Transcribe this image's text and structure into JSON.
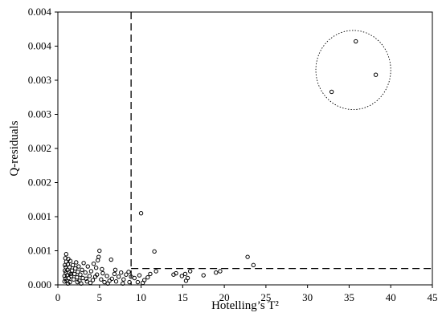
{
  "chart_data": {
    "type": "scatter",
    "xlabel": "Hotelling’s T²",
    "ylabel": "Q-residuals",
    "xlim": [
      0,
      45
    ],
    "ylim": [
      0,
      0.004
    ],
    "x_ticks": [
      0,
      5,
      10,
      15,
      20,
      25,
      30,
      35,
      40,
      45
    ],
    "y_ticks": [
      0,
      0.0005,
      0.001,
      0.0015,
      0.002,
      0.0025,
      0.003,
      0.0035,
      0.004
    ],
    "y_tick_labels": [
      "0.000",
      "0.001",
      "0.001",
      "0.002",
      "0.002",
      "0.003",
      "0.003",
      "0.004",
      "0.004"
    ],
    "grid": false,
    "legend": "none",
    "thresholds": {
      "t2_limit": 8.8,
      "q_limit": 0.00024
    },
    "outlier_circle": {
      "cx": 35.5,
      "cy": 0.00315,
      "rx": 4.5,
      "ry": 0.00058
    },
    "series": [
      {
        "points": [
          [
            35.8,
            0.00357
          ],
          [
            38.2,
            0.00308
          ],
          [
            32.9,
            0.00283
          ],
          [
            10.0,
            0.00105
          ],
          [
            22.8,
            0.00041
          ],
          [
            23.5,
            0.00029
          ],
          [
            11.6,
            0.00049
          ],
          [
            19.5,
            0.0002
          ],
          [
            19.0,
            0.00018
          ],
          [
            17.5,
            0.00014
          ],
          [
            15.9,
            0.0002
          ],
          [
            15.3,
            0.00016
          ],
          [
            14.9,
            0.00013
          ],
          [
            15.6,
            0.0001
          ],
          [
            15.4,
            6e-05
          ],
          [
            14.2,
            0.00017
          ],
          [
            13.9,
            0.00015
          ],
          [
            11.8,
            0.0002
          ],
          [
            11.1,
            0.00016
          ],
          [
            10.8,
            0.00011
          ],
          [
            10.4,
            7e-05
          ],
          [
            10.2,
            3e-05
          ],
          [
            9.6,
            4e-05
          ],
          [
            9.2,
            0.0001
          ],
          [
            9.8,
            0.00014
          ],
          [
            8.8,
            0.00012
          ],
          [
            8.5,
            0.00019
          ],
          [
            8.2,
            0.00015
          ],
          [
            7.9,
            8e-05
          ],
          [
            7.6,
            0.00018
          ],
          [
            7.3,
            0.00012
          ],
          [
            7.0,
            5e-05
          ],
          [
            6.8,
            0.00016
          ],
          [
            6.5,
            9e-05
          ],
          [
            6.4,
            0.00037
          ],
          [
            6.2,
            6e-05
          ],
          [
            5.9,
            0.00013
          ],
          [
            5.6,
            4e-05
          ],
          [
            5.4,
            0.00017
          ],
          [
            5.2,
            8e-05
          ],
          [
            5.0,
            0.0005
          ],
          [
            4.9,
            0.00041
          ],
          [
            4.8,
            0.00036
          ],
          [
            4.6,
            0.00025
          ],
          [
            4.5,
            0.00012
          ],
          [
            4.3,
            0.00031
          ],
          [
            4.2,
            7e-05
          ],
          [
            4.0,
            0.0002
          ],
          [
            3.8,
            0.00013
          ],
          [
            3.6,
            0.00027
          ],
          [
            3.5,
            5e-05
          ],
          [
            3.3,
            0.00018
          ],
          [
            3.1,
            0.00032
          ],
          [
            3.0,
            0.0001
          ],
          [
            2.9,
            0.00022
          ],
          [
            2.7,
            0.00015
          ],
          [
            2.6,
            6e-05
          ],
          [
            2.5,
            0.00027
          ],
          [
            2.4,
            0.00019
          ],
          [
            2.3,
            0.00011
          ],
          [
            2.2,
            0.00033
          ],
          [
            2.1,
            0.00024
          ],
          [
            2.0,
            0.00016
          ],
          [
            1.9,
            8e-05
          ],
          [
            1.8,
            0.00029
          ],
          [
            1.7,
            0.00021
          ],
          [
            1.6,
            0.00013
          ],
          [
            1.5,
            0.00035
          ],
          [
            1.45,
            4e-05
          ],
          [
            1.4,
            0.00026
          ],
          [
            1.35,
            0.00018
          ],
          [
            1.3,
            0.0001
          ],
          [
            1.25,
            0.00038
          ],
          [
            1.2,
            0.0003
          ],
          [
            1.15,
            0.00022
          ],
          [
            1.1,
            0.00014
          ],
          [
            1.05,
            6e-05
          ],
          [
            1.0,
            0.00045
          ],
          [
            1.0,
            0.00034
          ],
          [
            0.95,
            0.00026
          ],
          [
            0.95,
            0.00018
          ],
          [
            0.9,
            9e-05
          ],
          [
            0.9,
            0.00039
          ],
          [
            0.85,
            0.00029
          ],
          [
            0.85,
            0.00021
          ],
          [
            0.8,
            0.00013
          ],
          [
            0.8,
            5e-05
          ],
          [
            1.2,
            2e-05
          ],
          [
            2.8,
            2e-05
          ],
          [
            3.9,
            3e-05
          ],
          [
            6.0,
            2e-05
          ],
          [
            7.8,
            2e-05
          ],
          [
            8.6,
            4e-05
          ],
          [
            5.3,
            0.00023
          ],
          [
            6.9,
            0.00022
          ],
          [
            3.4,
            9e-05
          ],
          [
            2.35,
            4e-05
          ],
          [
            1.55,
            0.00016
          ],
          [
            4.7,
            0.00015
          ]
        ]
      }
    ]
  }
}
